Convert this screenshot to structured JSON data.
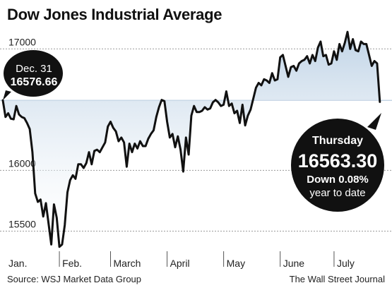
{
  "chart_data": {
    "type": "line",
    "title": "Dow Jones Industrial Average",
    "ylim": [
      15340,
      17170
    ],
    "yticks": [
      15500,
      16000,
      17000
    ],
    "xticks": [
      {
        "label": "Jan.",
        "x": 0
      },
      {
        "label": "Feb.",
        "x": 21
      },
      {
        "label": "March",
        "x": 40
      },
      {
        "label": "April",
        "x": 61
      },
      {
        "label": "May",
        "x": 82
      },
      {
        "label": "June",
        "x": 103
      },
      {
        "label": "July",
        "x": 123
      }
    ],
    "reference_value": 16576.66,
    "x_max": 144,
    "series": [
      {
        "values": [
          [
            0,
            16576.66
          ],
          [
            1,
            16440
          ],
          [
            2,
            16470
          ],
          [
            3,
            16425
          ],
          [
            4,
            16420
          ],
          [
            5,
            16530
          ],
          [
            6,
            16460
          ],
          [
            7,
            16440
          ],
          [
            8,
            16430
          ],
          [
            9,
            16390
          ],
          [
            10,
            16340
          ],
          [
            11,
            16150
          ],
          [
            12,
            15810
          ],
          [
            13,
            15740
          ],
          [
            14,
            15760
          ],
          [
            15,
            15620
          ],
          [
            16,
            15730
          ],
          [
            17,
            15560
          ],
          [
            18,
            15390
          ],
          [
            19,
            15720
          ],
          [
            20,
            15610
          ],
          [
            21,
            15370
          ],
          [
            22,
            15390
          ],
          [
            23,
            15550
          ],
          [
            24,
            15820
          ],
          [
            25,
            15920
          ],
          [
            26,
            15960
          ],
          [
            27,
            15930
          ],
          [
            28,
            16050
          ],
          [
            29,
            16050
          ],
          [
            30,
            16020
          ],
          [
            31,
            16060
          ],
          [
            32,
            16150
          ],
          [
            33,
            16050
          ],
          [
            34,
            16160
          ],
          [
            35,
            16170
          ],
          [
            36,
            16150
          ],
          [
            37,
            16190
          ],
          [
            38,
            16230
          ],
          [
            39,
            16360
          ],
          [
            40,
            16400
          ],
          [
            41,
            16350
          ],
          [
            42,
            16320
          ],
          [
            43,
            16240
          ],
          [
            44,
            16270
          ],
          [
            45,
            16230
          ],
          [
            46,
            16030
          ],
          [
            47,
            16220
          ],
          [
            48,
            16150
          ],
          [
            49,
            16220
          ],
          [
            50,
            16180
          ],
          [
            51,
            16240
          ],
          [
            52,
            16200
          ],
          [
            53,
            16200
          ],
          [
            54,
            16260
          ],
          [
            55,
            16300
          ],
          [
            56,
            16330
          ],
          [
            57,
            16440
          ],
          [
            58,
            16520
          ],
          [
            59,
            16580
          ],
          [
            60,
            16570
          ],
          [
            61,
            16400
          ],
          [
            62,
            16270
          ],
          [
            63,
            16300
          ],
          [
            64,
            16190
          ],
          [
            65,
            16280
          ],
          [
            66,
            16170
          ],
          [
            67,
            15990
          ],
          [
            68,
            16270
          ],
          [
            69,
            16130
          ],
          [
            70,
            16450
          ],
          [
            71,
            16530
          ],
          [
            72,
            16480
          ],
          [
            73,
            16480
          ],
          [
            74,
            16490
          ],
          [
            75,
            16520
          ],
          [
            76,
            16500
          ],
          [
            77,
            16510
          ],
          [
            78,
            16560
          ],
          [
            79,
            16580
          ],
          [
            80,
            16560
          ],
          [
            81,
            16530
          ],
          [
            82,
            16540
          ],
          [
            83,
            16650
          ],
          [
            84,
            16530
          ],
          [
            85,
            16550
          ],
          [
            86,
            16470
          ],
          [
            87,
            16490
          ],
          [
            88,
            16390
          ],
          [
            89,
            16540
          ],
          [
            90,
            16370
          ],
          [
            91,
            16450
          ],
          [
            92,
            16500
          ],
          [
            93,
            16590
          ],
          [
            94,
            16680
          ],
          [
            95,
            16720
          ],
          [
            96,
            16700
          ],
          [
            97,
            16750
          ],
          [
            98,
            16740
          ],
          [
            99,
            16720
          ],
          [
            100,
            16800
          ],
          [
            101,
            16740
          ],
          [
            102,
            16750
          ],
          [
            103,
            16930
          ],
          [
            104,
            16950
          ],
          [
            105,
            16860
          ],
          [
            106,
            16770
          ],
          [
            107,
            16850
          ],
          [
            108,
            16860
          ],
          [
            109,
            16820
          ],
          [
            110,
            16880
          ],
          [
            111,
            16900
          ],
          [
            112,
            16910
          ],
          [
            113,
            16940
          ],
          [
            114,
            16880
          ],
          [
            115,
            16950
          ],
          [
            116,
            16900
          ],
          [
            117,
            17010
          ],
          [
            118,
            17060
          ],
          [
            119,
            16940
          ],
          [
            120,
            16950
          ],
          [
            121,
            16870
          ],
          [
            122,
            16880
          ],
          [
            123,
            16980
          ],
          [
            124,
            16910
          ],
          [
            125,
            17040
          ],
          [
            126,
            16980
          ],
          [
            127,
            17050
          ],
          [
            128,
            17140
          ],
          [
            129,
            17000
          ],
          [
            130,
            17080
          ],
          [
            131,
            16990
          ],
          [
            132,
            16980
          ],
          [
            133,
            17060
          ],
          [
            134,
            17040
          ],
          [
            135,
            17040
          ],
          [
            136,
            16950
          ],
          [
            137,
            16860
          ],
          [
            138,
            16900
          ],
          [
            139,
            16880
          ],
          [
            140,
            16563.3
          ]
        ]
      }
    ],
    "annotations": {
      "start": {
        "line1": "Dec. 31",
        "line2": "16576.66"
      },
      "end": {
        "line1": "Thursday",
        "line2": "16563.30",
        "line3": "Down 0.08%",
        "line4": "year to date"
      }
    },
    "fill_color": "#bfd3e6",
    "line_color": "#111111",
    "grid": "horizontal"
  },
  "footer": {
    "source": "Source: WSJ Market Data Group",
    "credit": "The Wall Street Journal"
  }
}
